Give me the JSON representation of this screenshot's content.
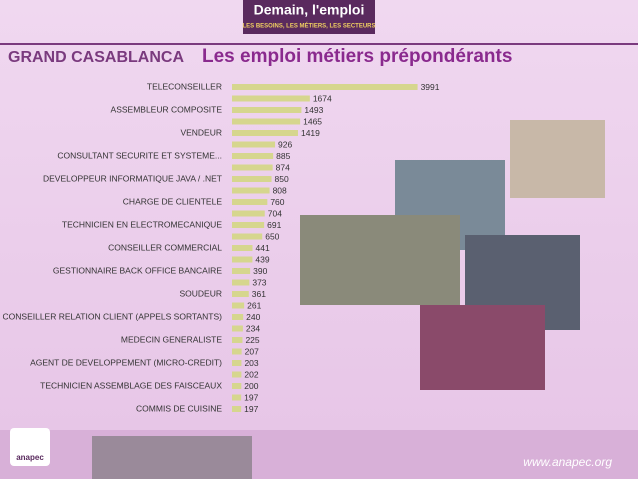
{
  "header": {
    "brand": "Demain, l'emploi",
    "tagline": "LES BESOINS, LES MÉTIERS, LES SECTEURS",
    "region": "GRAND CASABLANCA"
  },
  "footer": {
    "logo": "anapec",
    "url": "www.anapec.org"
  },
  "chart_data": {
    "type": "hbar",
    "title": "Les emploi métiers prépondérants",
    "categories": [
      "TELECONSEILLER",
      null,
      "ASSEMBLEUR COMPOSITE",
      null,
      "VENDEUR",
      null,
      "CONSULTANT SECURITE ET SYSTEME...",
      null,
      "DEVELOPPEUR INFORMATIQUE JAVA / .NET",
      null,
      "CHARGE DE CLIENTELE",
      null,
      "TECHNICIEN EN ELECTROMECANIQUE",
      null,
      "CONSEILLER COMMERCIAL",
      null,
      "GESTIONNAIRE BACK OFFICE BANCAIRE",
      null,
      "SOUDEUR",
      null,
      "CONSEILLER RELATION CLIENT (APPELS SORTANTS)",
      null,
      "MEDECIN GENERALISTE",
      null,
      "AGENT DE DEVELOPPEMENT (MICRO-CREDIT)",
      null,
      "TECHNICIEN ASSEMBLAGE DES FAISCEAUX",
      null,
      "COMMIS DE CUISINE"
    ],
    "values": [
      3991,
      1674,
      1493,
      1465,
      1419,
      926,
      885,
      874,
      850,
      808,
      760,
      704,
      691,
      650,
      441,
      439,
      390,
      373,
      361,
      261,
      240,
      234,
      225,
      207,
      203,
      202,
      200,
      197,
      197
    ],
    "color": "#d6d68e",
    "xlim": [
      0,
      4000
    ]
  }
}
